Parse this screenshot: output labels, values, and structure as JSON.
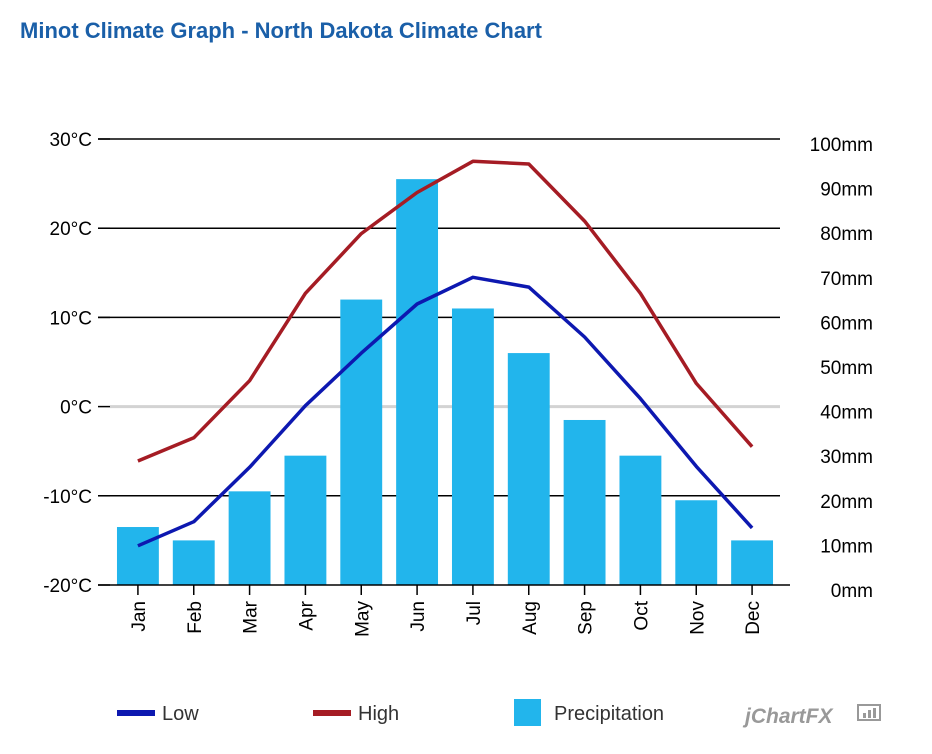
{
  "title": "Minot Climate Graph - North Dakota Climate Chart",
  "watermark": "jChartFX",
  "chart_data": {
    "type": "bar+line",
    "title": "Minot Climate Graph - North Dakota Climate Chart",
    "categories": [
      "Jan",
      "Feb",
      "Mar",
      "Apr",
      "May",
      "Jun",
      "Jul",
      "Aug",
      "Sep",
      "Oct",
      "Nov",
      "Dec"
    ],
    "left_axis": {
      "ylim": [
        -20,
        30
      ],
      "ticks": [
        30,
        20,
        10,
        0,
        -10,
        -20
      ],
      "labels": [
        "30°C",
        "20°C",
        "10°C",
        "0°C",
        "-10°C",
        "-20°C"
      ]
    },
    "right_axis": {
      "ylim": [
        0,
        100
      ],
      "ticks": [
        100,
        90,
        80,
        70,
        60,
        50,
        40,
        30,
        20,
        10,
        0
      ],
      "labels": [
        "100mm",
        "90mm",
        "80mm",
        "70mm",
        "60mm",
        "50mm",
        "40mm",
        "30mm",
        "20mm",
        "10mm",
        "0mm"
      ]
    },
    "series": [
      {
        "name": "Precipitation",
        "type": "bar",
        "axis": "right",
        "color": "#22b5ec",
        "values": [
          13,
          10,
          21,
          29,
          64,
          91,
          62,
          52,
          37,
          29,
          19,
          10
        ]
      },
      {
        "name": "High",
        "type": "line",
        "axis": "left",
        "color": "#a51c24",
        "values": [
          -6.1,
          -3.5,
          2.9,
          12.7,
          19.4,
          24.0,
          27.5,
          27.2,
          20.8,
          12.7,
          2.6,
          -4.5
        ]
      },
      {
        "name": "Low",
        "type": "line",
        "axis": "left",
        "color": "#0d18b0",
        "values": [
          -15.6,
          -12.9,
          -6.8,
          0.1,
          6.0,
          11.5,
          14.5,
          13.4,
          7.8,
          0.9,
          -6.7,
          -13.6
        ]
      }
    ],
    "legend": {
      "position": "bottom",
      "items": [
        "Low",
        "High",
        "Precipitation"
      ]
    },
    "grid": true,
    "zero_line": true
  }
}
